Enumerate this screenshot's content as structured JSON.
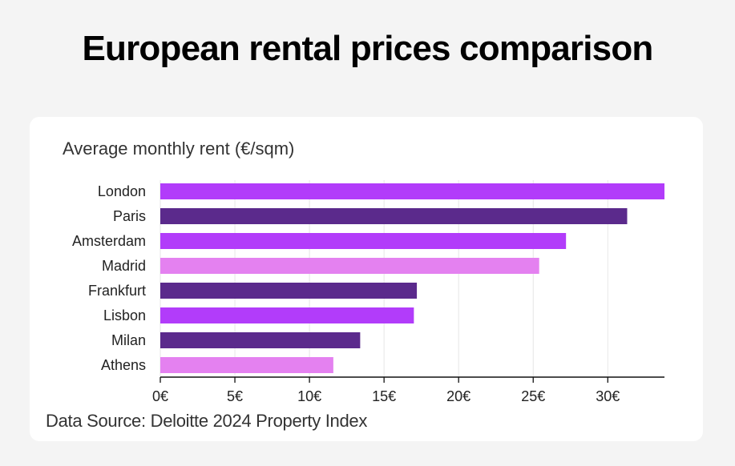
{
  "title": "European rental prices comparison",
  "subtitle": "Average monthly rent (€/sqm)",
  "source": "Data Source: Deloitte 2024 Property Index",
  "colors": {
    "bright": "#b23cfa",
    "dark": "#5b2a8c",
    "light": "#e481f0",
    "grid": "#e6e6e6",
    "axis": "#111111"
  },
  "chart_data": {
    "type": "bar",
    "orientation": "horizontal",
    "title": "European rental prices comparison",
    "subtitle": "Average monthly rent (€/sqm)",
    "xlabel": "",
    "ylabel": "",
    "categories": [
      "London",
      "Paris",
      "Amsterdam",
      "Madrid",
      "Frankfurt",
      "Lisbon",
      "Milan",
      "Athens"
    ],
    "values": [
      33.8,
      31.3,
      27.2,
      25.4,
      17.2,
      17.0,
      13.4,
      11.6
    ],
    "bar_colors": [
      "bright",
      "dark",
      "bright",
      "light",
      "dark",
      "bright",
      "dark",
      "light"
    ],
    "xlim": [
      0,
      33.8
    ],
    "xticks": [
      0,
      5,
      10,
      15,
      20,
      25,
      30
    ],
    "xtick_labels": [
      "0€",
      "5€",
      "10€",
      "15€",
      "20€",
      "25€",
      "30€"
    ],
    "grid": true,
    "legend": "none",
    "source": "Data Source: Deloitte 2024 Property Index"
  }
}
